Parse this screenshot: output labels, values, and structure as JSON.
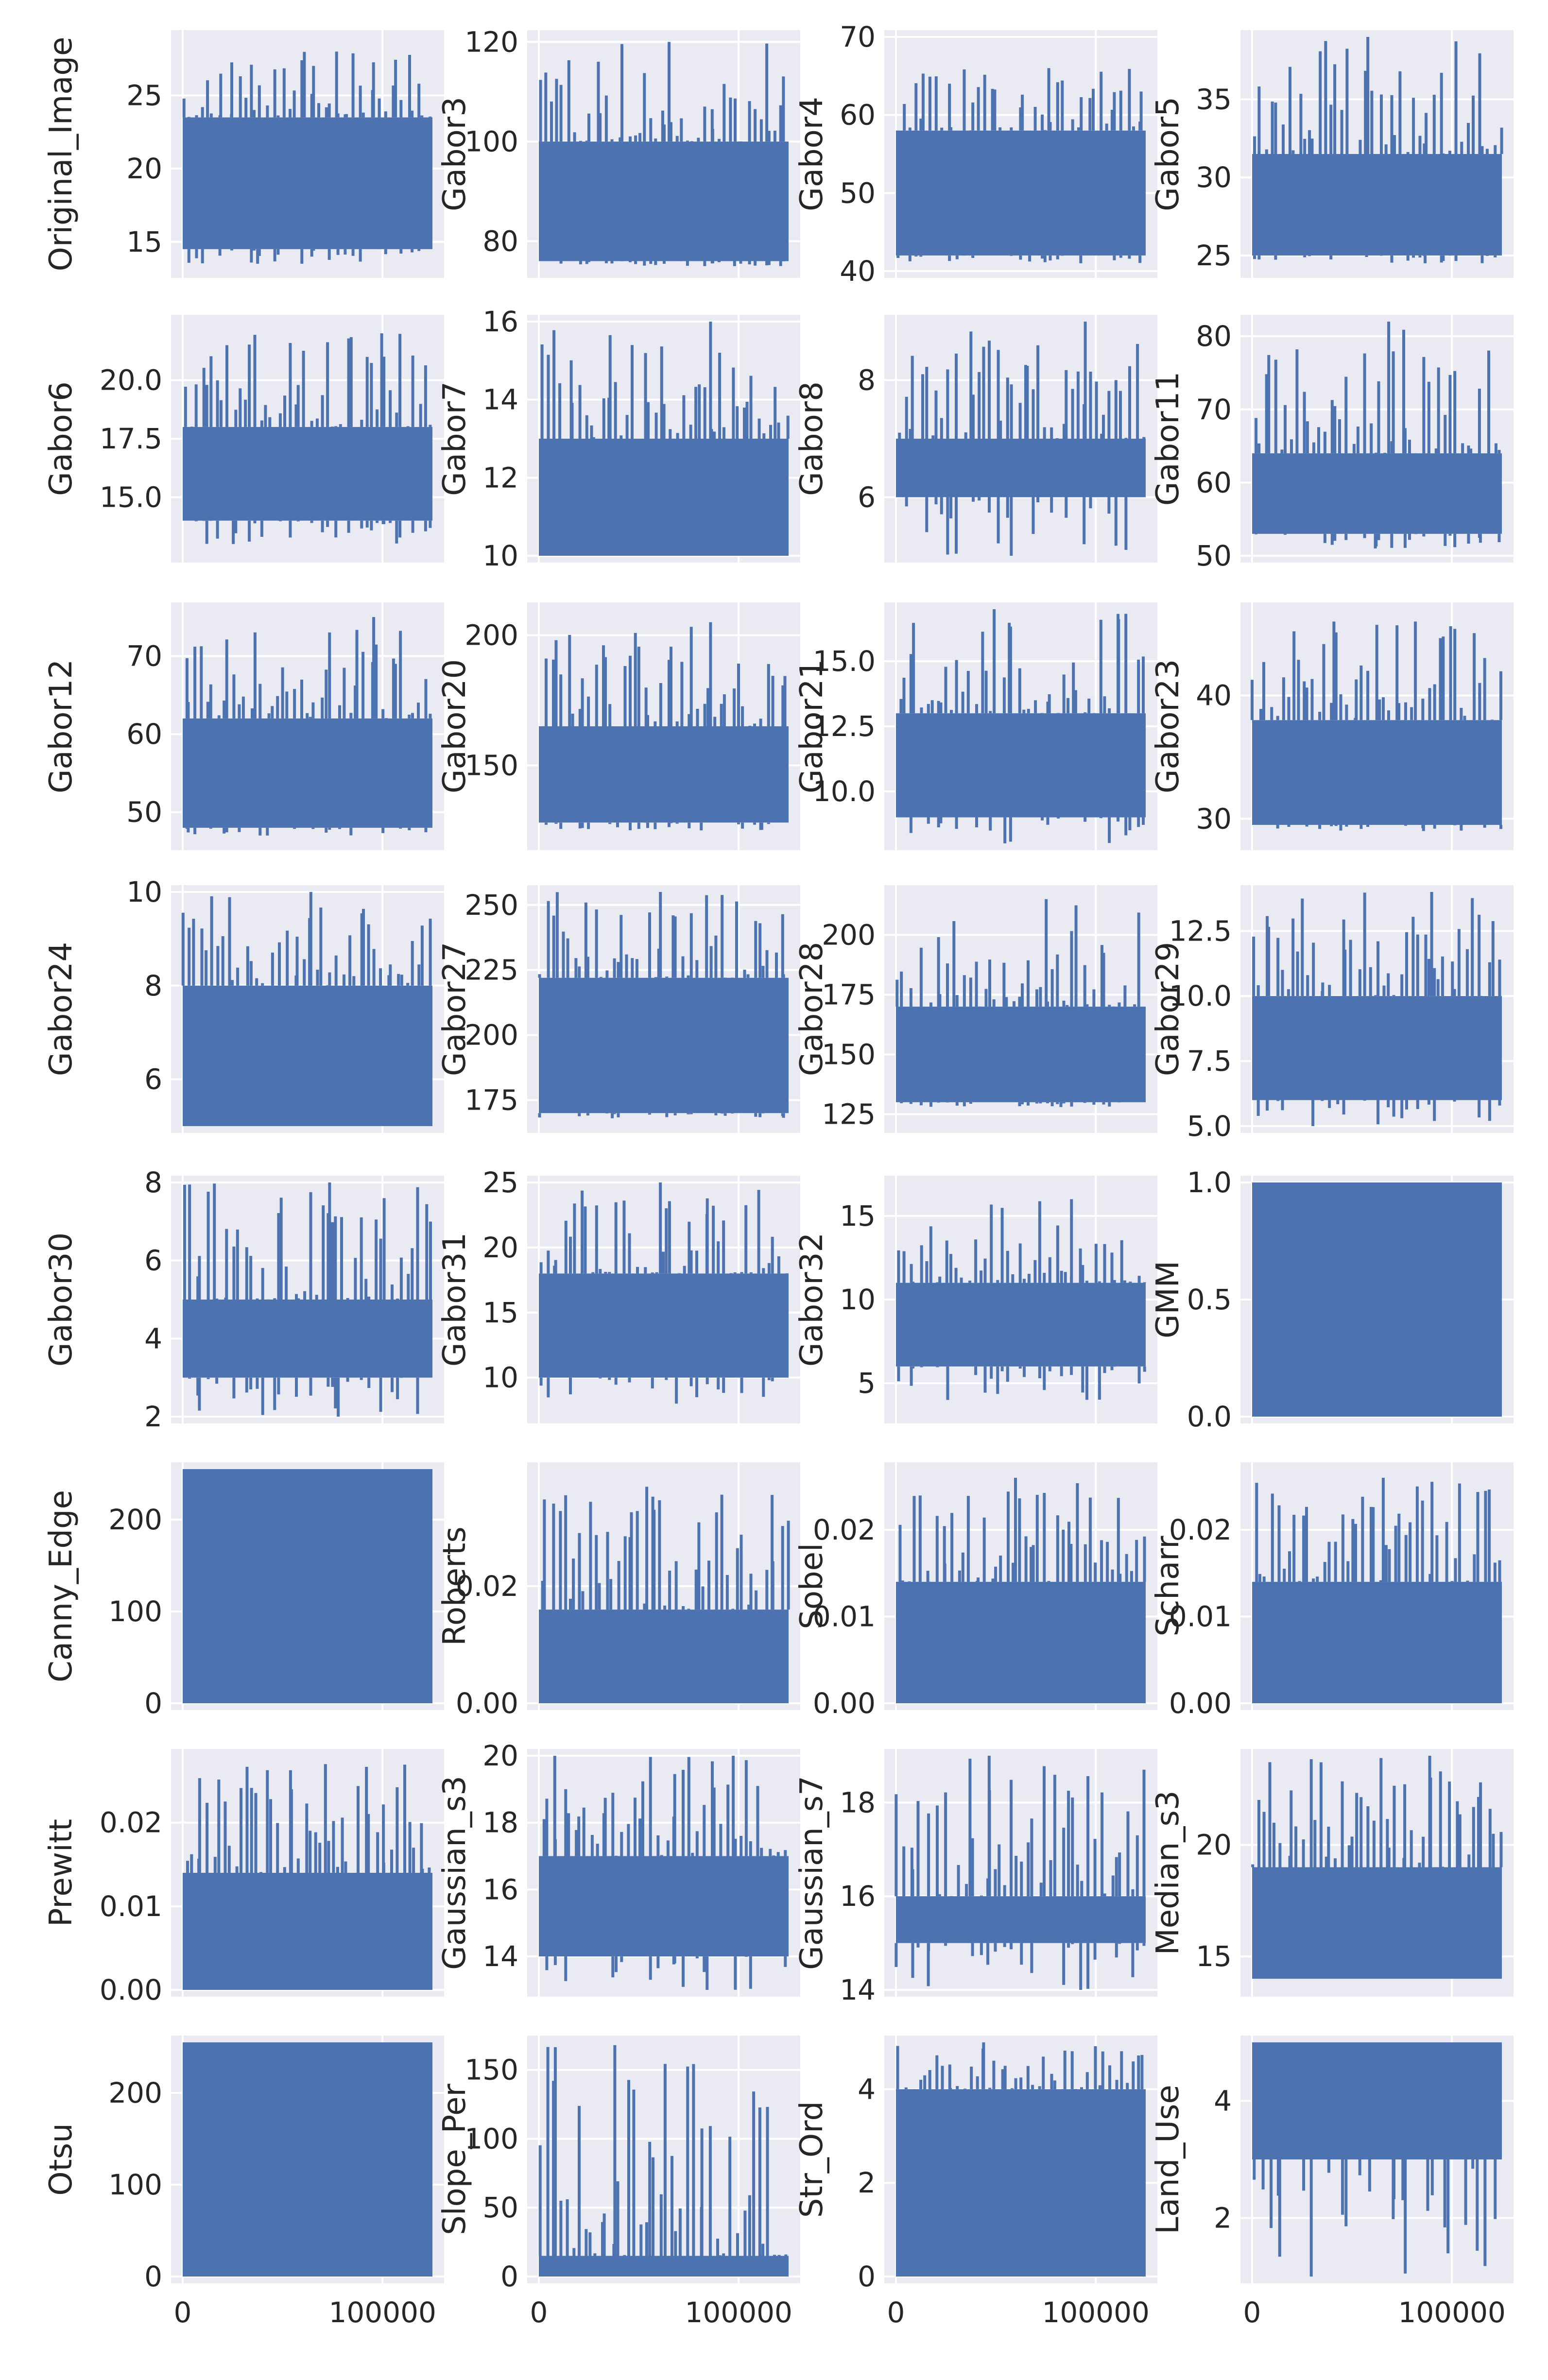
{
  "chart_data": {
    "type": "line",
    "figure": "small multiples, 8 rows x 4 columns",
    "x_range": [
      0,
      125000
    ],
    "x_ticks": [
      0,
      100000
    ],
    "x_tick_labels": [
      "0",
      "100000"
    ],
    "grid": true,
    "color": "#4c72b0",
    "panels": [
      {
        "ylabel": "Original_Image",
        "yticks": [
          15,
          20,
          25
        ],
        "ytick_labels": [
          "15",
          "20",
          "25"
        ],
        "ylim": [
          13,
          29
        ],
        "band": [
          14.5,
          23.5
        ],
        "min": 13.5,
        "max": 28
      },
      {
        "ylabel": "Gabor3",
        "yticks": [
          80,
          100,
          120
        ],
        "ytick_labels": [
          "80",
          "100",
          "120"
        ],
        "ylim": [
          74,
          121
        ],
        "band": [
          76,
          100
        ],
        "min": 75,
        "max": 120
      },
      {
        "ylabel": "Gabor4",
        "yticks": [
          40,
          50,
          60,
          70
        ],
        "ytick_labels": [
          "40",
          "50",
          "60",
          "70"
        ],
        "ylim": [
          40,
          70
        ],
        "band": [
          42,
          58
        ],
        "min": 41,
        "max": 66
      },
      {
        "ylabel": "Gabor5",
        "yticks": [
          25,
          30,
          35
        ],
        "ytick_labels": [
          "25",
          "30",
          "35"
        ],
        "ylim": [
          24,
          39
        ],
        "band": [
          25,
          31.5
        ],
        "min": 24.5,
        "max": 39
      },
      {
        "ylabel": "Gabor6",
        "yticks": [
          15.0,
          17.5,
          20.0
        ],
        "ytick_labels": [
          "15.0",
          "17.5",
          "20.0"
        ],
        "ylim": [
          12.5,
          22.5
        ],
        "band": [
          14,
          18
        ],
        "min": 13,
        "max": 22
      },
      {
        "ylabel": "Gabor7",
        "yticks": [
          10,
          12,
          14,
          16
        ],
        "ytick_labels": [
          "10",
          "12",
          "14",
          "16"
        ],
        "ylim": [
          10,
          16
        ],
        "band": [
          10,
          13
        ],
        "min": 10,
        "max": 16
      },
      {
        "ylabel": "Gabor8",
        "yticks": [
          6,
          8
        ],
        "ytick_labels": [
          "6",
          "8"
        ],
        "ylim": [
          5,
          9
        ],
        "band": [
          6,
          7
        ],
        "min": 5,
        "max": 9
      },
      {
        "ylabel": "Gabor11",
        "yticks": [
          50,
          60,
          70,
          80
        ],
        "ytick_labels": [
          "50",
          "60",
          "70",
          "80"
        ],
        "ylim": [
          50,
          82
        ],
        "band": [
          53,
          64
        ],
        "min": 51,
        "max": 82
      },
      {
        "ylabel": "Gabor12",
        "yticks": [
          50,
          60,
          70
        ],
        "ytick_labels": [
          "50",
          "60",
          "70"
        ],
        "ylim": [
          46,
          76
        ],
        "band": [
          48,
          62
        ],
        "min": 47,
        "max": 75
      },
      {
        "ylabel": "Gabor20",
        "yticks": [
          150,
          200
        ],
        "ytick_labels": [
          "150",
          "200"
        ],
        "ylim": [
          120,
          210
        ],
        "band": [
          128,
          165
        ],
        "min": 125,
        "max": 205
      },
      {
        "ylabel": "Gabor21",
        "yticks": [
          10.0,
          12.5,
          15.0
        ],
        "ytick_labels": [
          "10.0",
          "12.5",
          "15.0"
        ],
        "ylim": [
          8,
          17
        ],
        "band": [
          9,
          13
        ],
        "min": 8,
        "max": 17
      },
      {
        "ylabel": "Gabor23",
        "yticks": [
          30,
          40
        ],
        "ytick_labels": [
          "30",
          "40"
        ],
        "ylim": [
          28,
          47
        ],
        "band": [
          29.5,
          38
        ],
        "min": 29,
        "max": 46
      },
      {
        "ylabel": "Gabor24",
        "yticks": [
          6,
          8,
          10
        ],
        "ytick_labels": [
          "6",
          "8",
          "10"
        ],
        "ylim": [
          5,
          10
        ],
        "band": [
          5,
          8
        ],
        "min": 5,
        "max": 10
      },
      {
        "ylabel": "Gabor27",
        "yticks": [
          175,
          200,
          225,
          250
        ],
        "ytick_labels": [
          "175",
          "200",
          "225",
          "250"
        ],
        "ylim": [
          165,
          255
        ],
        "band": [
          170,
          222
        ],
        "min": 168,
        "max": 255
      },
      {
        "ylabel": "Gabor28",
        "yticks": [
          125,
          150,
          175,
          200
        ],
        "ytick_labels": [
          "125",
          "150",
          "175",
          "200"
        ],
        "ylim": [
          120,
          218
        ],
        "band": [
          130,
          170
        ],
        "min": 128,
        "max": 215
      },
      {
        "ylabel": "Gabor29",
        "yticks": [
          5.0,
          7.5,
          10.0,
          12.5
        ],
        "ytick_labels": [
          "5.0",
          "7.5",
          "10.0",
          "12.5"
        ],
        "ylim": [
          5,
          14
        ],
        "band": [
          6,
          10
        ],
        "min": 5,
        "max": 14
      },
      {
        "ylabel": "Gabor30",
        "yticks": [
          2,
          4,
          6,
          8
        ],
        "ytick_labels": [
          "2",
          "4",
          "6",
          "8"
        ],
        "ylim": [
          2,
          8
        ],
        "band": [
          3,
          5
        ],
        "min": 2,
        "max": 8
      },
      {
        "ylabel": "Gabor31",
        "yticks": [
          10,
          15,
          20,
          25
        ],
        "ytick_labels": [
          "10",
          "15",
          "20",
          "25"
        ],
        "ylim": [
          7,
          25
        ],
        "band": [
          10,
          18
        ],
        "min": 8,
        "max": 25
      },
      {
        "ylabel": "Gabor32",
        "yticks": [
          5,
          10,
          15
        ],
        "ytick_labels": [
          "5",
          "10",
          "15"
        ],
        "ylim": [
          3,
          17
        ],
        "band": [
          6,
          11
        ],
        "min": 4,
        "max": 16
      },
      {
        "ylabel": "GMM",
        "yticks": [
          0.0,
          0.5,
          1.0
        ],
        "ytick_labels": [
          "0.0",
          "0.5",
          "1.0"
        ],
        "ylim": [
          0,
          1
        ],
        "band": [
          0,
          1
        ],
        "min": 0,
        "max": 1
      },
      {
        "ylabel": "Canny_Edge",
        "yticks": [
          0,
          100,
          200
        ],
        "ytick_labels": [
          "0",
          "100",
          "200"
        ],
        "ylim": [
          0,
          255
        ],
        "band": [
          0,
          255
        ],
        "min": 0,
        "max": 255
      },
      {
        "ylabel": "Roberts",
        "yticks": [
          0.0,
          0.02
        ],
        "ytick_labels": [
          "0.00",
          "0.02"
        ],
        "ylim": [
          0,
          0.04
        ],
        "band": [
          0,
          0.016
        ],
        "min": 0,
        "max": 0.037
      },
      {
        "ylabel": "Sobel",
        "yticks": [
          0.0,
          0.01,
          0.02
        ],
        "ytick_labels": [
          "0.00",
          "0.01",
          "0.02"
        ],
        "ylim": [
          0,
          0.027
        ],
        "band": [
          0,
          0.014
        ],
        "min": 0,
        "max": 0.026
      },
      {
        "ylabel": "Scharr",
        "yticks": [
          0.0,
          0.01,
          0.02
        ],
        "ytick_labels": [
          "0.00",
          "0.01",
          "0.02"
        ],
        "ylim": [
          0,
          0.027
        ],
        "band": [
          0,
          0.014
        ],
        "min": 0,
        "max": 0.026
      },
      {
        "ylabel": "Prewitt",
        "yticks": [
          0.0,
          0.01,
          0.02
        ],
        "ytick_labels": [
          "0.00",
          "0.01",
          "0.02"
        ],
        "ylim": [
          0,
          0.028
        ],
        "band": [
          0,
          0.014
        ],
        "min": 0,
        "max": 0.027
      },
      {
        "ylabel": "Gaussian_s3",
        "yticks": [
          14,
          16,
          18,
          20
        ],
        "ytick_labels": [
          "14",
          "16",
          "18",
          "20"
        ],
        "ylim": [
          13,
          20
        ],
        "band": [
          14,
          17
        ],
        "min": 13,
        "max": 20
      },
      {
        "ylabel": "Gaussian_s7",
        "yticks": [
          14,
          16,
          18
        ],
        "ytick_labels": [
          "14",
          "16",
          "18"
        ],
        "ylim": [
          14,
          19
        ],
        "band": [
          15,
          16
        ],
        "min": 14,
        "max": 19
      },
      {
        "ylabel": "Median_s3",
        "yticks": [
          15,
          20
        ],
        "ytick_labels": [
          "15",
          "20"
        ],
        "ylim": [
          13.5,
          24
        ],
        "band": [
          14,
          19
        ],
        "min": 14,
        "max": 24
      },
      {
        "ylabel": "Otsu",
        "yticks": [
          0,
          100,
          200
        ],
        "ytick_labels": [
          "0",
          "100",
          "200"
        ],
        "ylim": [
          0,
          255
        ],
        "band": [
          0,
          255
        ],
        "min": 0,
        "max": 255
      },
      {
        "ylabel": "Slope_Per",
        "yticks": [
          0,
          50,
          100,
          150
        ],
        "ytick_labels": [
          "0",
          "50",
          "100",
          "150"
        ],
        "ylim": [
          0,
          170
        ],
        "band": [
          0,
          15
        ],
        "min": 0,
        "max": 168
      },
      {
        "ylabel": "Str_Ord",
        "yticks": [
          0,
          2,
          4
        ],
        "ytick_labels": [
          "0",
          "2",
          "4"
        ],
        "ylim": [
          0,
          5
        ],
        "band": [
          0,
          4
        ],
        "min": 0,
        "max": 5
      },
      {
        "ylabel": "Land_Use",
        "yticks": [
          2,
          4
        ],
        "ytick_labels": [
          "2",
          "4"
        ],
        "ylim": [
          1,
          5
        ],
        "band": [
          3,
          5
        ],
        "min": 1,
        "max": 5
      }
    ]
  }
}
